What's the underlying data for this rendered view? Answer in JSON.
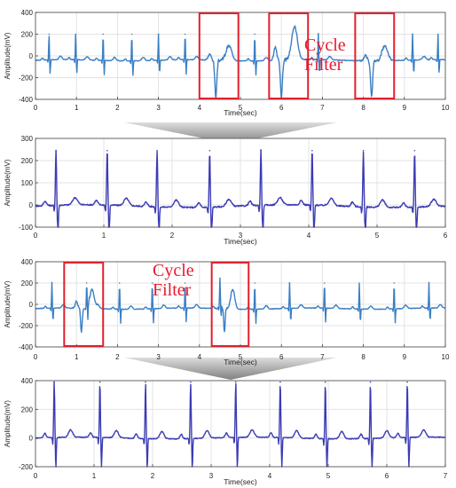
{
  "chart_data": [
    {
      "type": "line",
      "xlabel": "Time(sec)",
      "ylabel": "Amplitude(mV)",
      "xlim": [
        0,
        10
      ],
      "ylim": [
        -400,
        400
      ],
      "xticks": [
        0,
        1,
        2,
        3,
        4,
        5,
        6,
        7,
        8,
        9,
        10
      ],
      "yticks": [
        -400,
        -200,
        0,
        200,
        400
      ],
      "grid": true,
      "line_color": "#3a7fc4",
      "beats_sec": [
        0.33,
        0.98,
        1.65,
        2.35,
        3.0,
        3.65,
        5.35,
        6.9,
        9.2,
        9.82
      ],
      "r_peak_mV": 200,
      "baseline_mV": -40,
      "noisy_segments": [
        {
          "start_sec": 4.0,
          "end_sec": 5.0,
          "min_mV": -400,
          "max_mV": 110
        },
        {
          "start_sec": 5.6,
          "end_sec": 6.6,
          "min_mV": -400,
          "max_mV": 300
        },
        {
          "start_sec": 7.8,
          "end_sec": 8.8,
          "min_mV": -370,
          "max_mV": 110
        }
      ],
      "highlight_boxes_sec": [
        [
          4.0,
          4.95
        ],
        [
          5.7,
          6.65
        ],
        [
          7.8,
          8.75
        ]
      ],
      "annotation": "Cycle Filter"
    },
    {
      "type": "line",
      "xlabel": "Time(sec)",
      "ylabel": "Amplitude(mV)",
      "xlim": [
        0,
        6
      ],
      "ylim": [
        -100,
        300
      ],
      "xticks": [
        0,
        1,
        2,
        3,
        4,
        5,
        6
      ],
      "yticks": [
        -100,
        0,
        100,
        200,
        300
      ],
      "grid": true,
      "line_color": "#3b3bb4",
      "beats_sec": [
        0.3,
        1.05,
        1.78,
        2.55,
        3.3,
        4.05,
        4.8,
        5.55
      ],
      "r_peak_mV": 245,
      "baseline_mV": -5
    },
    {
      "type": "line",
      "xlabel": "Time(sec)",
      "ylabel": "Amplitude(mV)",
      "xlim": [
        0,
        10
      ],
      "ylim": [
        -400,
        400
      ],
      "xticks": [
        0,
        1,
        2,
        3,
        4,
        5,
        6,
        7,
        8,
        9,
        10
      ],
      "yticks": [
        -400,
        -200,
        0,
        200,
        400
      ],
      "grid": true,
      "line_color": "#3a7fc4",
      "beats_sec": [
        0.4,
        1.25,
        2.05,
        2.85,
        3.65,
        4.5,
        5.35,
        6.2,
        7.05,
        7.9,
        8.75,
        9.6
      ],
      "r_peak_mV": 200,
      "baseline_mV": -40,
      "noisy_segments": [
        {
          "start_sec": 0.8,
          "end_sec": 1.6,
          "min_mV": -280,
          "max_mV": 150
        },
        {
          "start_sec": 4.35,
          "end_sec": 5.0,
          "min_mV": -280,
          "max_mV": 150
        }
      ],
      "highlight_boxes_sec": [
        [
          0.7,
          1.65
        ],
        [
          4.3,
          5.2
        ]
      ],
      "annotation": "Cycle Filter"
    },
    {
      "type": "line",
      "xlabel": "Time(sec)",
      "ylabel": "Amplitude(mV)",
      "xlim": [
        0,
        7
      ],
      "ylim": [
        -200,
        400
      ],
      "xticks": [
        0,
        1,
        2,
        3,
        4,
        5,
        6,
        7
      ],
      "yticks": [
        -200,
        0,
        200,
        400
      ],
      "grid": true,
      "line_color": "#3b3bb4",
      "beats_sec": [
        0.32,
        1.1,
        1.88,
        2.65,
        3.42,
        4.18,
        4.95,
        5.72,
        6.35
      ],
      "r_peak_mV": 390,
      "baseline_mV": 0
    }
  ]
}
